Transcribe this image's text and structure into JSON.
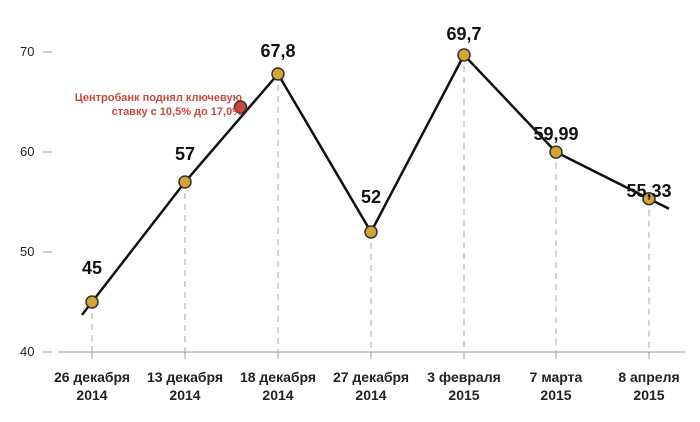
{
  "chart_data": {
    "type": "line",
    "categories": [
      [
        "26 декабря",
        "2014"
      ],
      [
        "13 декабря",
        "2014"
      ],
      [
        "18 декабря",
        "2014"
      ],
      [
        "27 декабря",
        "2014"
      ],
      [
        "3 февраля",
        "2015"
      ],
      [
        "7 марта",
        "2015"
      ],
      [
        "8 апреля",
        "2015"
      ]
    ],
    "values": [
      45,
      57,
      67.8,
      52,
      69.7,
      59.99,
      55.33
    ],
    "value_labels": [
      "45",
      "57",
      "67,8",
      "52",
      "69,7",
      "59,99",
      "55,33"
    ],
    "yticks": [
      40,
      50,
      60,
      70
    ],
    "ylim": [
      40,
      70
    ],
    "annotation": {
      "x_between": [
        1,
        2
      ],
      "value": 64.5,
      "lines": [
        "Центробанк поднял ключевую",
        "ставку с 10,5% до 17,0%"
      ],
      "color": "#c94a3d"
    },
    "colors": {
      "line": "#111111",
      "marker": "#d4a535",
      "highlight_marker": "#c94a3d",
      "guide": "#aaaaaa",
      "axis": "#999999"
    }
  }
}
